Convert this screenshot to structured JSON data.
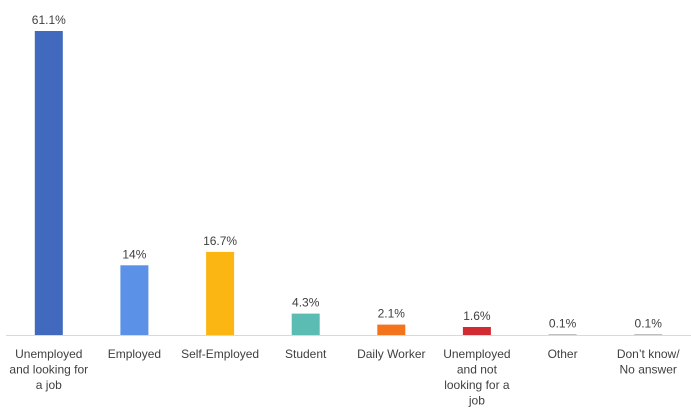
{
  "chart_data": {
    "type": "bar",
    "categories": [
      "Unemployed and looking for a job",
      "Employed",
      "Self-Employed",
      "Student",
      "Daily Worker",
      "Unemployed and not looking for a job",
      "Other",
      "Don’t know/ No answer"
    ],
    "category_lines": [
      [
        "Unemployed",
        "and looking for",
        "a job"
      ],
      [
        "Employed"
      ],
      [
        "Self-Employed"
      ],
      [
        "Student"
      ],
      [
        "Daily Worker"
      ],
      [
        "Unemployed",
        "and not",
        "looking for a",
        "job"
      ],
      [
        "Other"
      ],
      [
        "Don’t know/",
        "No answer"
      ]
    ],
    "values": [
      61.1,
      14,
      16.7,
      4.3,
      2.1,
      1.6,
      0.1,
      0.1
    ],
    "data_labels": [
      "61.1%",
      "14%",
      "16.7%",
      "4.3%",
      "2.1%",
      "1.6%",
      "0.1%",
      "0.1%"
    ],
    "colors": [
      "#4169be",
      "#5b91e6",
      "#fbb614",
      "#5bbcb3",
      "#f4741d",
      "#d12c34",
      "#7f7f7f",
      "#7f7f7f"
    ],
    "title": "",
    "xlabel": "",
    "ylabel": "",
    "ylim": [
      0,
      61.1
    ],
    "grid": false,
    "legend": "none"
  }
}
